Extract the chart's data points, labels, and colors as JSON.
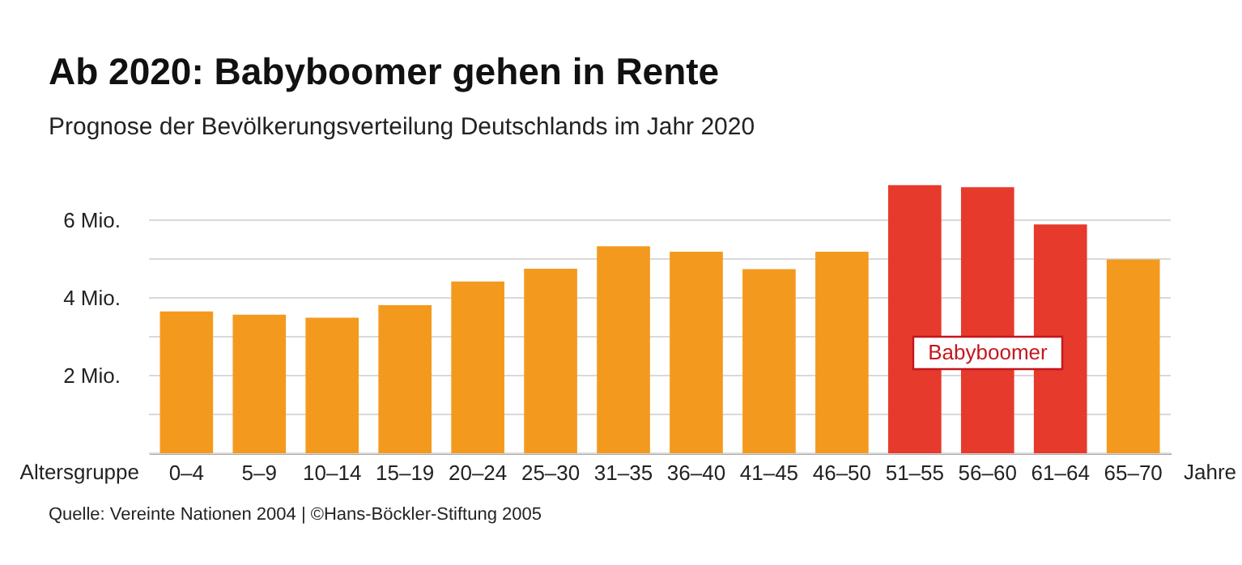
{
  "chart_data": {
    "type": "bar",
    "title": "Ab 2020: Babyboomer gehen in Rente",
    "subtitle": "Prognose der Bevölkerungsverteilung Deutschlands im Jahr 2020",
    "xlabel": "Altersgruppe",
    "categories": [
      "0–4",
      "5–9",
      "10–14",
      "15–19",
      "20–24",
      "25–30",
      "31–35",
      "36–40",
      "41–45",
      "46–50",
      "51–55",
      "56–60",
      "61–64",
      "65–70"
    ],
    "values": [
      3.65,
      3.57,
      3.49,
      3.81,
      4.42,
      4.75,
      5.33,
      5.19,
      4.74,
      5.19,
      6.9,
      6.85,
      5.89,
      4.99
    ],
    "colors": [
      "#f39a1e",
      "#f39a1e",
      "#f39a1e",
      "#f39a1e",
      "#f39a1e",
      "#f39a1e",
      "#f39a1e",
      "#f39a1e",
      "#f39a1e",
      "#f39a1e",
      "#e63a2c",
      "#e63a2c",
      "#e63a2c",
      "#f39a1e"
    ],
    "ylim": [
      0,
      7
    ],
    "yticks": [
      {
        "value": 0,
        "label": null
      },
      {
        "value": 1,
        "label": null
      },
      {
        "value": 2,
        "label": "2 Mio."
      },
      {
        "value": 3,
        "label": null
      },
      {
        "value": 4,
        "label": "4 Mio."
      },
      {
        "value": 5,
        "label": null
      },
      {
        "value": 6,
        "label": "6 Mio."
      }
    ],
    "grid": "y",
    "annotations": [
      "Babyboomer",
      "Jahre",
      "Quelle: Vereinte Nationen 2004 | ©Hans-Böckler-Stiftung 2005"
    ]
  }
}
